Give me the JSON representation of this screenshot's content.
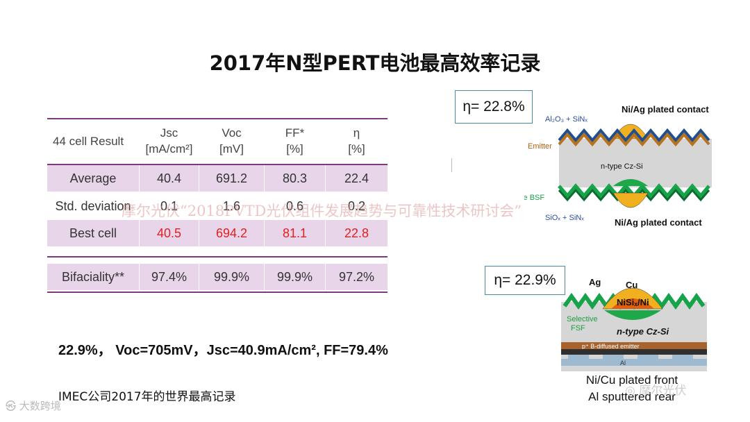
{
  "title": "2017年N型PERT电池最高效率记录",
  "table": {
    "headers": [
      {
        "line1": "44 cell Result",
        "line2": ""
      },
      {
        "line1": "Jsc",
        "line2": "[mA/cm²]"
      },
      {
        "line1": "Voc",
        "line2": "[mV]"
      },
      {
        "line1": "FF*",
        "line2": "[%]"
      },
      {
        "line1": "η",
        "line2": "[%]"
      }
    ],
    "rows": [
      {
        "label": "Average",
        "values": [
          "40.4",
          "691.2",
          "80.3",
          "22.4"
        ]
      },
      {
        "label": "Std. deviation",
        "values": [
          "0.1",
          "1.6",
          "0.6",
          "0.2"
        ]
      },
      {
        "label": "Best cell",
        "values": [
          "40.5",
          "694.2",
          "81.1",
          "22.8"
        ]
      },
      {
        "label": "Bifaciality**",
        "values": [
          "97.4%",
          "99.9%",
          "99.9%",
          "97.2%"
        ]
      }
    ]
  },
  "formula": "22.9%， Voc=705mV，Jsc=40.9mA/cm², FF=79.4%",
  "footnote": "IMEC公司2017年的世界最高记录",
  "watermark": "摩尔光伏“2018PVTD光伏组件发展趋势与可靠性技术研讨会”",
  "diagram_top": {
    "eta": "η= 22.8%",
    "label_top": "Al₂O₃ + SiNₓ",
    "label_contact_top": "Ni/Ag plated contact",
    "label_emitter": "Emitter",
    "label_si": "n-type Cz-Si",
    "label_bsf": "Selective BSF",
    "label_bottom": "SiOₓ + SiNₓ",
    "label_contact_bottom": "Ni/Ag plated contact"
  },
  "diagram_bottom": {
    "eta": "η= 22.9%",
    "label_ag": "Ag",
    "label_cu": "Cu",
    "label_nisi": "NiSiₓ/Ni",
    "label_fsf_1": "Selective",
    "label_fsf_2": "FSF",
    "label_si": "n-type Cz-Si",
    "label_emitter": "p⁺ B-diffused emitter",
    "label_al": "Al",
    "caption_1": "Ni/Cu plated front",
    "caption_2": "Al sputtered rear"
  },
  "wechat_label": "摩尔光伏",
  "corner_logo": "大数跨境",
  "colors": {
    "accent": "#7b3a7b",
    "row_shade": "#e9d5ea",
    "best": "#e02020"
  }
}
